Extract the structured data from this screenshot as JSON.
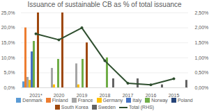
{
  "chart_data": {
    "type": "bar",
    "title": "Issuance of sustainable CB as % of total issuance",
    "categories": [
      "2021*",
      "2020",
      "2019",
      "2018",
      "2017",
      "2016",
      "2015"
    ],
    "series": [
      {
        "name": "Denmark",
        "color": "#5b9bd5",
        "values": [
          2.0,
          0,
          0,
          0,
          0,
          0,
          0
        ]
      },
      {
        "name": "Finland",
        "color": "#ed7d31",
        "values": [
          20.0,
          0,
          0,
          0,
          0,
          0,
          0
        ]
      },
      {
        "name": "France",
        "color": "#a5a5a5",
        "values": [
          3.5,
          6.5,
          8.0,
          0,
          0,
          0,
          0
        ]
      },
      {
        "name": "Germany",
        "color": "#ffc000",
        "values": [
          2.5,
          1.0,
          1.0,
          0,
          0,
          0,
          0
        ]
      },
      {
        "name": "Italy",
        "color": "#4472c4",
        "values": [
          12.0,
          0,
          0,
          0,
          0,
          0,
          0
        ]
      },
      {
        "name": "Norway",
        "color": "#70ad47",
        "values": [
          15.5,
          9.5,
          9.5,
          10.0,
          0,
          0,
          0
        ]
      },
      {
        "name": "Poland",
        "color": "#264478",
        "values": [
          0,
          0,
          0,
          0,
          0,
          0,
          0
        ]
      },
      {
        "name": "South Korea",
        "color": "#9e480e",
        "values": [
          25.0,
          25.0,
          15.0,
          0,
          0,
          0,
          0
        ]
      },
      {
        "name": "Sweden",
        "color": "#636363",
        "values": [
          0,
          0,
          0,
          3.0,
          3.0,
          1.0,
          2.5
        ]
      },
      {
        "name": "Total (RHS)",
        "type": "line",
        "axis": "y2",
        "color": "#2f4f2f",
        "marker": "circle",
        "values": [
          1.8,
          1.6,
          2.0,
          0.9,
          0.15,
          0.1,
          0.3
        ]
      }
    ],
    "ylim": [
      0,
      25
    ],
    "yticks": [
      {
        "value": 0,
        "label": "0,0%"
      },
      {
        "value": 5,
        "label": "5,0%"
      },
      {
        "value": 10,
        "label": "10,0%"
      },
      {
        "value": 15,
        "label": "15,0%"
      },
      {
        "value": 20,
        "label": "20,0%"
      },
      {
        "value": 25,
        "label": "25,0%"
      }
    ],
    "y2lim": [
      0,
      2.5
    ],
    "y2ticks": [
      {
        "value": 0,
        "label": "0,00%"
      },
      {
        "value": 0.5,
        "label": "0,50%"
      },
      {
        "value": 1,
        "label": "1,00%"
      },
      {
        "value": 1.5,
        "label": "1,50%"
      },
      {
        "value": 2,
        "label": "2,00%"
      },
      {
        "value": 2.5,
        "label": "2,50%"
      }
    ],
    "grid": true,
    "legend": "bottom"
  }
}
